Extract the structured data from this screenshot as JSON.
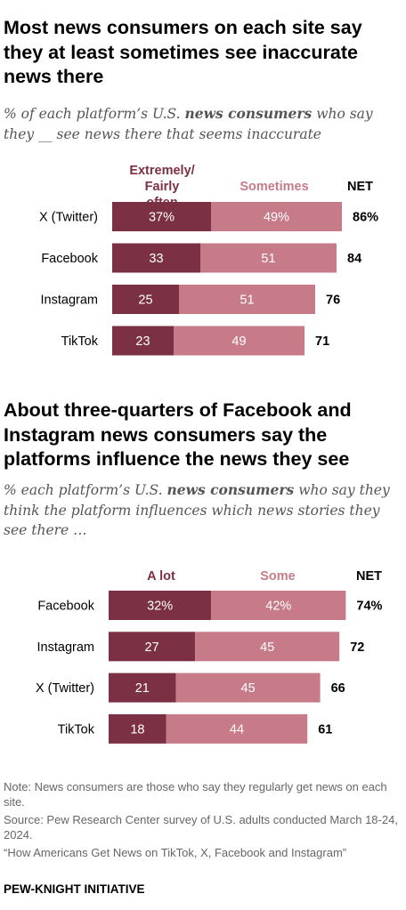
{
  "charts": [
    {
      "title": "Most news consumers on each site say they at least sometimes see inaccurate news there",
      "subtitle_pre": "% of each platform’s U.S. ",
      "subtitle_bold": "news consumers",
      "subtitle_post": " who say they __ see news there that seems inaccurate"
    },
    {
      "title": "About three-quarters of Facebook and Instagram news consumers say the platforms influence the news they see",
      "subtitle_pre": "% each platform’s U.S. ",
      "subtitle_bold": "news consumers",
      "subtitle_post": " who say they think the platform influences which news stories they see there …"
    }
  ],
  "chart_data": [
    {
      "type": "bar",
      "orientation": "horizontal",
      "stacked": true,
      "title": "Most news consumers on each site say they at least sometimes see inaccurate news there",
      "categories": [
        "X (Twitter)",
        "Facebook",
        "Instagram",
        "TikTok"
      ],
      "series": [
        {
          "name": "Extremely/ Fairly often",
          "values": [
            37,
            33,
            25,
            23
          ],
          "labels": [
            "37%",
            "33",
            "25",
            "23"
          ],
          "color": "#7b3043"
        },
        {
          "name": "Sometimes",
          "values": [
            49,
            51,
            51,
            49
          ],
          "labels": [
            "49%",
            "51",
            "51",
            "49"
          ],
          "color": "#c77b89"
        }
      ],
      "net_header": "NET",
      "net": [
        "86%",
        "84",
        "76",
        "71"
      ]
    },
    {
      "type": "bar",
      "orientation": "horizontal",
      "stacked": true,
      "title": "About three-quarters of Facebook and Instagram news consumers say the platforms influence the news they see",
      "categories": [
        "Facebook",
        "Instagram",
        "X (Twitter)",
        "TikTok"
      ],
      "series": [
        {
          "name": "A lot",
          "values": [
            32,
            27,
            21,
            18
          ],
          "labels": [
            "32%",
            "27",
            "21",
            "18"
          ],
          "color": "#7b3043"
        },
        {
          "name": "Some",
          "values": [
            42,
            45,
            45,
            44
          ],
          "labels": [
            "42%",
            "45",
            "45",
            "44"
          ],
          "color": "#c77b89"
        }
      ],
      "net_header": "NET",
      "net": [
        "74%",
        "72",
        "66",
        "61"
      ]
    }
  ],
  "note": {
    "note_line": "Note: News consumers are those who say they regularly get news on each site.",
    "source_line": "Source: Pew Research Center survey of U.S. adults conducted March 18-24, 2024.",
    "report_line": "“How Americans Get News on TikTok, X, Facebook and Instagram”"
  },
  "footer": "PEW-KNIGHT INITIATIVE"
}
